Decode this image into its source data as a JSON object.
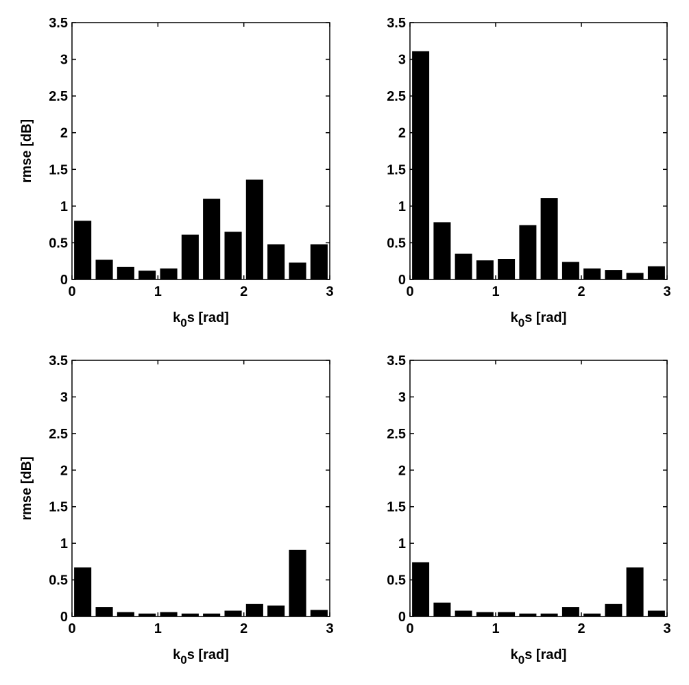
{
  "chart_data": [
    {
      "type": "bar",
      "x": [
        0.125,
        0.375,
        0.625,
        0.875,
        1.125,
        1.375,
        1.625,
        1.875,
        2.125,
        2.375,
        2.625,
        2.875
      ],
      "values": [
        0.8,
        0.27,
        0.17,
        0.12,
        0.15,
        0.61,
        1.1,
        0.65,
        1.36,
        0.48,
        0.23,
        0.48
      ],
      "xlabel_base": "k",
      "xlabel_sub": "0",
      "xlabel_rest": "s [rad]",
      "ylabel": "rmse [dB]",
      "xlim": [
        0,
        3
      ],
      "ylim": [
        0,
        3.5
      ],
      "xticks": [
        "0",
        "1",
        "2",
        "3"
      ],
      "yticks": [
        "0",
        "0.5",
        "1",
        "1.5",
        "2",
        "2.5",
        "3",
        "3.5"
      ],
      "grid": false,
      "color": "#000000"
    },
    {
      "type": "bar",
      "x": [
        0.125,
        0.375,
        0.625,
        0.875,
        1.125,
        1.375,
        1.625,
        1.875,
        2.125,
        2.375,
        2.625,
        2.875
      ],
      "values": [
        3.11,
        0.78,
        0.35,
        0.26,
        0.28,
        0.74,
        1.11,
        0.24,
        0.15,
        0.13,
        0.09,
        0.18
      ],
      "xlabel_base": "k",
      "xlabel_sub": "0",
      "xlabel_rest": "s [rad]",
      "ylabel": "",
      "xlim": [
        0,
        3
      ],
      "ylim": [
        0,
        3.5
      ],
      "xticks": [
        "0",
        "1",
        "2",
        "3"
      ],
      "yticks": [
        "0",
        "0.5",
        "1",
        "1.5",
        "2",
        "2.5",
        "3",
        "3.5"
      ],
      "grid": false,
      "color": "#000000"
    },
    {
      "type": "bar",
      "x": [
        0.125,
        0.375,
        0.625,
        0.875,
        1.125,
        1.375,
        1.625,
        1.875,
        2.125,
        2.375,
        2.625,
        2.875
      ],
      "values": [
        0.67,
        0.13,
        0.06,
        0.04,
        0.06,
        0.04,
        0.04,
        0.08,
        0.17,
        0.15,
        0.91,
        0.09
      ],
      "xlabel_base": "k",
      "xlabel_sub": "0",
      "xlabel_rest": "s [rad]",
      "ylabel": "rmse [dB]",
      "xlim": [
        0,
        3
      ],
      "ylim": [
        0,
        3.5
      ],
      "xticks": [
        "0",
        "1",
        "2",
        "3"
      ],
      "yticks": [
        "0",
        "0.5",
        "1",
        "1.5",
        "2",
        "2.5",
        "3",
        "3.5"
      ],
      "grid": false,
      "color": "#000000"
    },
    {
      "type": "bar",
      "x": [
        0.125,
        0.375,
        0.625,
        0.875,
        1.125,
        1.375,
        1.625,
        1.875,
        2.125,
        2.375,
        2.625,
        2.875
      ],
      "values": [
        0.74,
        0.19,
        0.08,
        0.06,
        0.06,
        0.04,
        0.04,
        0.13,
        0.04,
        0.17,
        0.67,
        0.08
      ],
      "xlabel_base": "k",
      "xlabel_sub": "0",
      "xlabel_rest": "s [rad]",
      "ylabel": "",
      "xlim": [
        0,
        3
      ],
      "ylim": [
        0,
        3.5
      ],
      "xticks": [
        "0",
        "1",
        "2",
        "3"
      ],
      "yticks": [
        "0",
        "0.5",
        "1",
        "1.5",
        "2",
        "2.5",
        "3",
        "3.5"
      ],
      "grid": false,
      "color": "#000000"
    }
  ]
}
